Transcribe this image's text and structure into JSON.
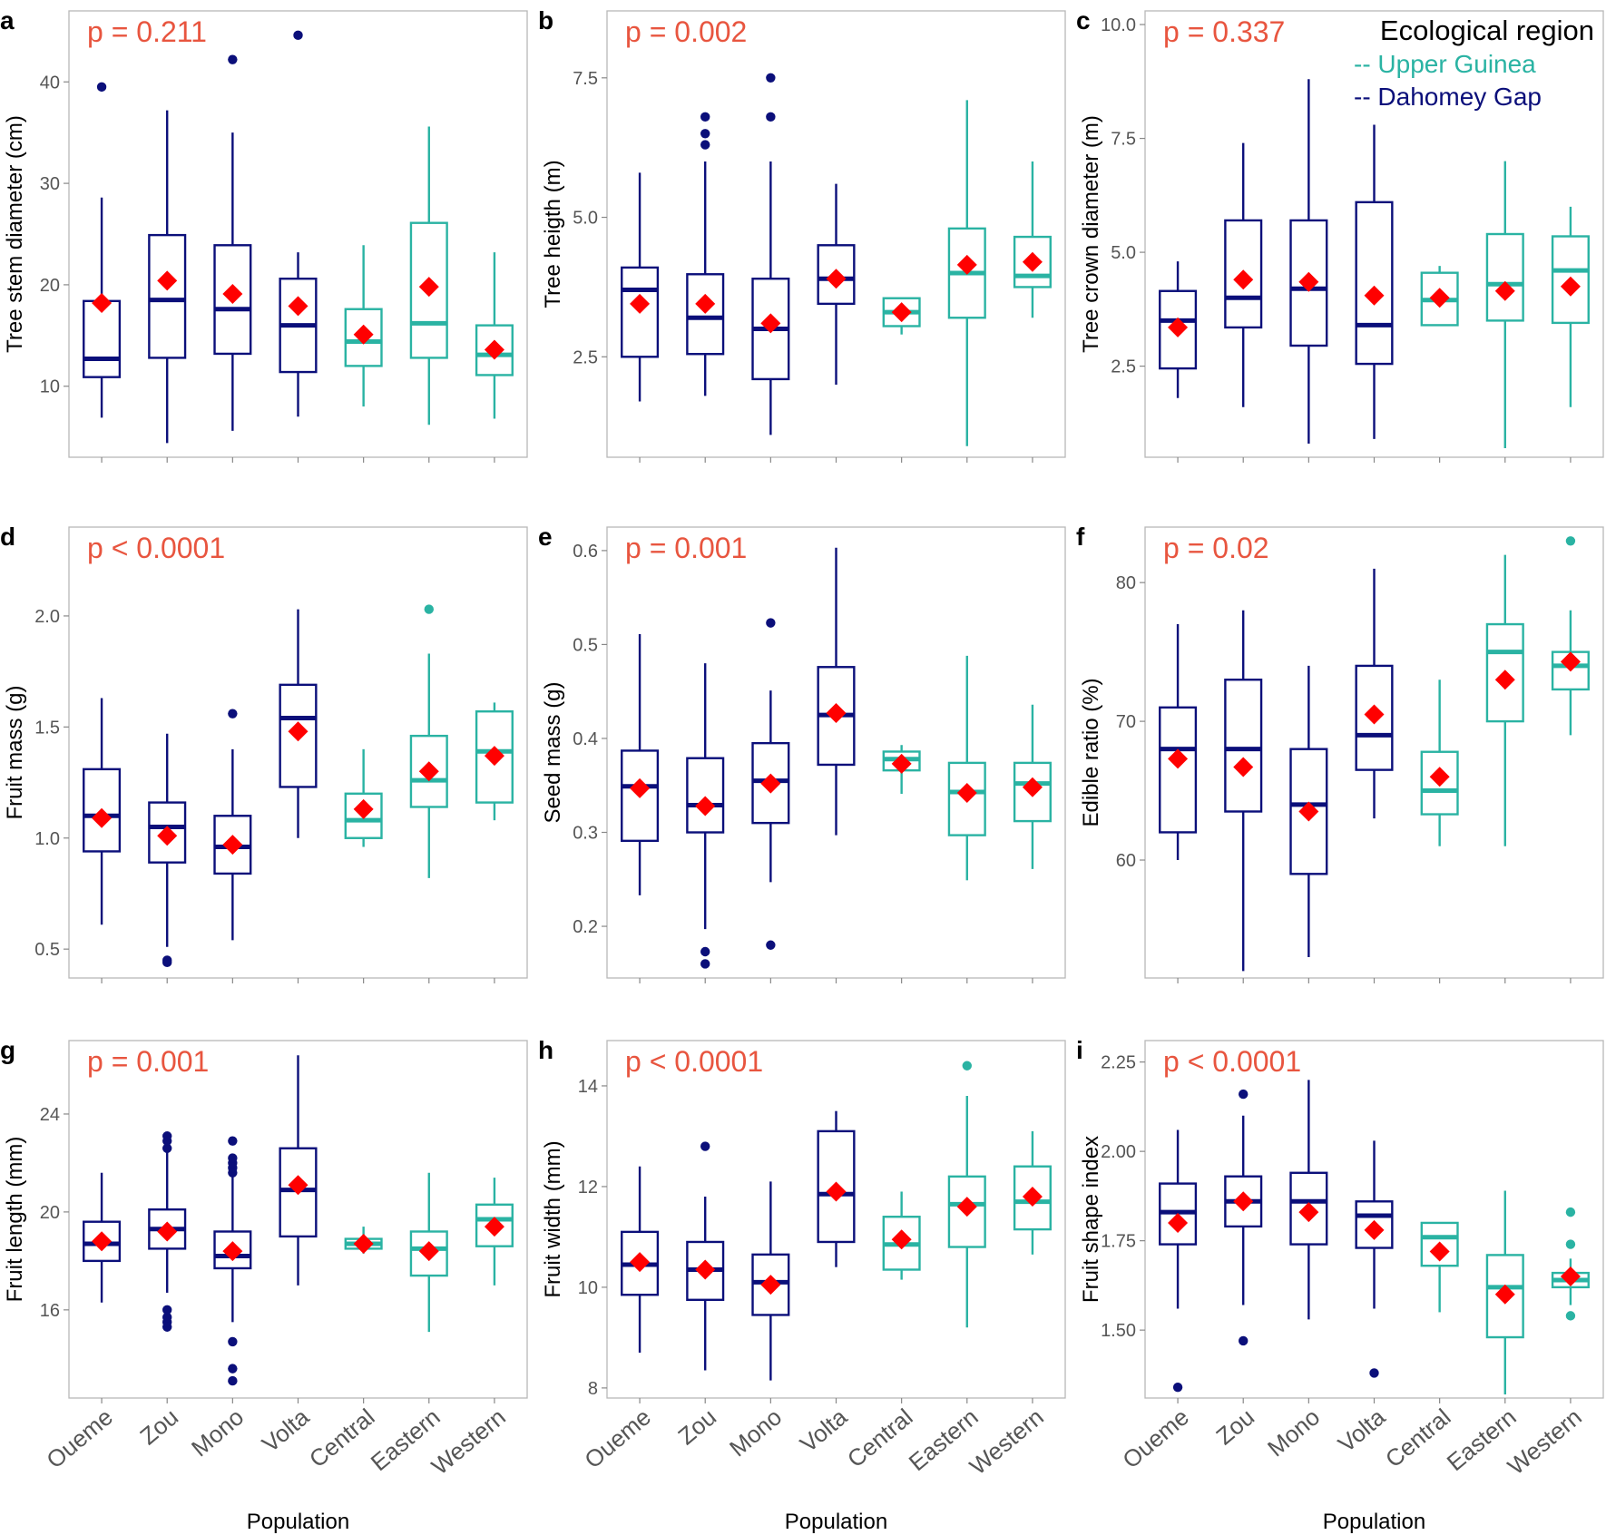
{
  "colors": {
    "dahomey_gap": "#0b0f7a",
    "upper_guinea": "#2ab3a3",
    "mean_marker": "#ff0000",
    "p_value": "#e8553f",
    "panel_border": "#b8b8b8",
    "axis_text": "#555555"
  },
  "x_axis_title": "Population",
  "legend": {
    "title": "Ecological region",
    "items": [
      {
        "label": "-- Upper Guinea",
        "region": "UG"
      },
      {
        "label": "-- Dahomey Gap",
        "region": "DG"
      }
    ]
  },
  "chart_data": [
    {
      "type": "box",
      "panel": "a",
      "ylabel": "Tree stem diameter (cm)",
      "p_label": "p = 0.211",
      "ylim": [
        3,
        47
      ],
      "yticks": [
        10,
        20,
        30,
        40
      ],
      "categories": [
        "Oueme",
        "Zou",
        "Mono",
        "Volta",
        "Central",
        "Eastern",
        "Western"
      ],
      "regions": [
        "DG",
        "DG",
        "DG",
        "DG",
        "UG",
        "UG",
        "UG"
      ],
      "boxes": [
        {
          "min": 6.9,
          "q1": 10.9,
          "median": 12.7,
          "q3": 18.4,
          "max": 28.6,
          "mean": 18.2,
          "outliers": [
            39.5
          ]
        },
        {
          "min": 4.4,
          "q1": 12.8,
          "median": 18.5,
          "q3": 24.9,
          "max": 37.2,
          "mean": 20.4,
          "outliers": []
        },
        {
          "min": 5.6,
          "q1": 13.2,
          "median": 17.6,
          "q3": 23.9,
          "max": 35.0,
          "mean": 19.1,
          "outliers": [
            42.2
          ]
        },
        {
          "min": 7.0,
          "q1": 11.4,
          "median": 16.0,
          "q3": 20.6,
          "max": 23.2,
          "mean": 17.9,
          "outliers": [
            44.6
          ]
        },
        {
          "min": 8.0,
          "q1": 12.0,
          "median": 14.4,
          "q3": 17.6,
          "max": 23.9,
          "mean": 15.1,
          "outliers": []
        },
        {
          "min": 6.2,
          "q1": 12.8,
          "median": 16.2,
          "q3": 26.1,
          "max": 35.6,
          "mean": 19.8,
          "outliers": []
        },
        {
          "min": 6.8,
          "q1": 11.1,
          "median": 13.1,
          "q3": 16.0,
          "max": 23.2,
          "mean": 13.6,
          "outliers": []
        }
      ]
    },
    {
      "type": "box",
      "panel": "b",
      "ylabel": "Tree heigth (m)",
      "p_label": "p = 0.002",
      "ylim": [
        0.7,
        8.7
      ],
      "yticks": [
        "2.5",
        "5.0",
        "7.5"
      ],
      "categories": [
        "Oueme",
        "Zou",
        "Mono",
        "Volta",
        "Central",
        "Eastern",
        "Western"
      ],
      "regions": [
        "DG",
        "DG",
        "DG",
        "DG",
        "UG",
        "UG",
        "UG"
      ],
      "boxes": [
        {
          "min": 1.7,
          "q1": 2.5,
          "median": 3.7,
          "q3": 4.1,
          "max": 5.8,
          "mean": 3.45,
          "outliers": []
        },
        {
          "min": 1.8,
          "q1": 2.55,
          "median": 3.2,
          "q3": 3.98,
          "max": 6.0,
          "mean": 3.45,
          "outliers": [
            6.3,
            6.5,
            6.8
          ]
        },
        {
          "min": 1.1,
          "q1": 2.1,
          "median": 3.0,
          "q3": 3.9,
          "max": 6.0,
          "mean": 3.1,
          "outliers": [
            6.8,
            7.5
          ]
        },
        {
          "min": 2.0,
          "q1": 3.45,
          "median": 3.9,
          "q3": 4.5,
          "max": 5.6,
          "mean": 3.9,
          "outliers": []
        },
        {
          "min": 2.9,
          "q1": 3.05,
          "median": 3.3,
          "q3": 3.55,
          "max": 3.55,
          "mean": 3.3,
          "outliers": []
        },
        {
          "min": 0.9,
          "q1": 3.2,
          "median": 4.0,
          "q3": 4.8,
          "max": 7.1,
          "mean": 4.15,
          "outliers": []
        },
        {
          "min": 3.2,
          "q1": 3.75,
          "median": 3.95,
          "q3": 4.65,
          "max": 6.0,
          "mean": 4.2,
          "outliers": []
        }
      ]
    },
    {
      "type": "box",
      "panel": "c",
      "ylabel": "Tree crown diameter (m)",
      "p_label": "p = 0.337",
      "ylim": [
        0.5,
        10.3
      ],
      "yticks": [
        "2.5",
        "5.0",
        "7.5",
        "10.0"
      ],
      "categories": [
        "Oueme",
        "Zou",
        "Mono",
        "Volta",
        "Central",
        "Eastern",
        "Western"
      ],
      "regions": [
        "DG",
        "DG",
        "DG",
        "DG",
        "UG",
        "UG",
        "UG"
      ],
      "boxes": [
        {
          "min": 1.8,
          "q1": 2.45,
          "median": 3.5,
          "q3": 4.15,
          "max": 4.8,
          "mean": 3.35,
          "outliers": []
        },
        {
          "min": 1.6,
          "q1": 3.35,
          "median": 4.0,
          "q3": 5.7,
          "max": 7.4,
          "mean": 4.4,
          "outliers": []
        },
        {
          "min": 0.8,
          "q1": 2.95,
          "median": 4.2,
          "q3": 5.7,
          "max": 8.8,
          "mean": 4.35,
          "outliers": []
        },
        {
          "min": 0.9,
          "q1": 2.55,
          "median": 3.4,
          "q3": 6.1,
          "max": 7.8,
          "mean": 4.05,
          "outliers": []
        },
        {
          "min": 3.4,
          "q1": 3.4,
          "median": 3.95,
          "q3": 4.55,
          "max": 4.7,
          "mean": 4.0,
          "outliers": []
        },
        {
          "min": 0.7,
          "q1": 3.5,
          "median": 4.3,
          "q3": 5.4,
          "max": 7.0,
          "mean": 4.15,
          "outliers": []
        },
        {
          "min": 1.6,
          "q1": 3.45,
          "median": 4.6,
          "q3": 5.35,
          "max": 6.0,
          "mean": 4.25,
          "outliers": []
        }
      ]
    },
    {
      "type": "box",
      "panel": "d",
      "ylabel": "Fruit mass (g)",
      "p_label": "p < 0.0001",
      "ylim": [
        0.37,
        2.4
      ],
      "yticks": [
        "0.5",
        "1.0",
        "1.5",
        "2.0"
      ],
      "categories": [
        "Oueme",
        "Zou",
        "Mono",
        "Volta",
        "Central",
        "Eastern",
        "Western"
      ],
      "regions": [
        "DG",
        "DG",
        "DG",
        "DG",
        "UG",
        "UG",
        "UG"
      ],
      "boxes": [
        {
          "min": 0.61,
          "q1": 0.94,
          "median": 1.1,
          "q3": 1.31,
          "max": 1.63,
          "mean": 1.09,
          "outliers": []
        },
        {
          "min": 0.51,
          "q1": 0.89,
          "median": 1.05,
          "q3": 1.16,
          "max": 1.47,
          "mean": 1.01,
          "outliers": [
            0.44,
            0.45
          ]
        },
        {
          "min": 0.54,
          "q1": 0.84,
          "median": 0.96,
          "q3": 1.1,
          "max": 1.4,
          "mean": 0.97,
          "outliers": [
            1.56
          ]
        },
        {
          "min": 1.0,
          "q1": 1.23,
          "median": 1.54,
          "q3": 1.69,
          "max": 2.03,
          "mean": 1.48,
          "outliers": []
        },
        {
          "min": 0.96,
          "q1": 1.0,
          "median": 1.08,
          "q3": 1.2,
          "max": 1.4,
          "mean": 1.13,
          "outliers": []
        },
        {
          "min": 0.82,
          "q1": 1.14,
          "median": 1.26,
          "q3": 1.46,
          "max": 1.83,
          "mean": 1.3,
          "outliers": [
            2.03
          ]
        },
        {
          "min": 1.08,
          "q1": 1.16,
          "median": 1.39,
          "q3": 1.57,
          "max": 1.61,
          "mean": 1.37,
          "outliers": []
        }
      ]
    },
    {
      "type": "box",
      "panel": "e",
      "ylabel": "Seed mass (g)",
      "p_label": "p = 0.001",
      "ylim": [
        0.145,
        0.625
      ],
      "yticks": [
        "0.2",
        "0.3",
        "0.4",
        "0.5",
        "0.6"
      ],
      "categories": [
        "Oueme",
        "Zou",
        "Mono",
        "Volta",
        "Central",
        "Eastern",
        "Western"
      ],
      "regions": [
        "DG",
        "DG",
        "DG",
        "DG",
        "UG",
        "UG",
        "UG"
      ],
      "boxes": [
        {
          "min": 0.233,
          "q1": 0.291,
          "median": 0.349,
          "q3": 0.387,
          "max": 0.511,
          "mean": 0.347,
          "outliers": []
        },
        {
          "min": 0.197,
          "q1": 0.3,
          "median": 0.329,
          "q3": 0.379,
          "max": 0.48,
          "mean": 0.328,
          "outliers": [
            0.16,
            0.173
          ]
        },
        {
          "min": 0.247,
          "q1": 0.31,
          "median": 0.355,
          "q3": 0.395,
          "max": 0.451,
          "mean": 0.352,
          "outliers": [
            0.18,
            0.523
          ]
        },
        {
          "min": 0.297,
          "q1": 0.372,
          "median": 0.425,
          "q3": 0.476,
          "max": 0.603,
          "mean": 0.427,
          "outliers": []
        },
        {
          "min": 0.341,
          "q1": 0.366,
          "median": 0.378,
          "q3": 0.386,
          "max": 0.393,
          "mean": 0.373,
          "outliers": []
        },
        {
          "min": 0.249,
          "q1": 0.297,
          "median": 0.343,
          "q3": 0.374,
          "max": 0.488,
          "mean": 0.342,
          "outliers": []
        },
        {
          "min": 0.261,
          "q1": 0.312,
          "median": 0.352,
          "q3": 0.374,
          "max": 0.436,
          "mean": 0.348,
          "outliers": []
        }
      ]
    },
    {
      "type": "box",
      "panel": "f",
      "ylabel": "Edible ratio (%)",
      "p_label": "p = 0.02",
      "ylim": [
        51.5,
        84
      ],
      "yticks": [
        60,
        70,
        80
      ],
      "categories": [
        "Oueme",
        "Zou",
        "Mono",
        "Volta",
        "Central",
        "Eastern",
        "Western"
      ],
      "regions": [
        "DG",
        "DG",
        "DG",
        "DG",
        "UG",
        "UG",
        "UG"
      ],
      "boxes": [
        {
          "min": 60.0,
          "q1": 62.0,
          "median": 68.0,
          "q3": 71.0,
          "max": 77.0,
          "mean": 67.3,
          "outliers": []
        },
        {
          "min": 52.0,
          "q1": 63.5,
          "median": 68.0,
          "q3": 73.0,
          "max": 78.0,
          "mean": 66.7,
          "outliers": []
        },
        {
          "min": 53.0,
          "q1": 59.0,
          "median": 64.0,
          "q3": 68.0,
          "max": 74.0,
          "mean": 63.5,
          "outliers": []
        },
        {
          "min": 63.0,
          "q1": 66.5,
          "median": 69.0,
          "q3": 74.0,
          "max": 81.0,
          "mean": 70.5,
          "outliers": []
        },
        {
          "min": 61.0,
          "q1": 63.3,
          "median": 65.0,
          "q3": 67.8,
          "max": 73.0,
          "mean": 66.0,
          "outliers": []
        },
        {
          "min": 61.0,
          "q1": 70.0,
          "median": 75.0,
          "q3": 77.0,
          "max": 82.0,
          "mean": 73.0,
          "outliers": []
        },
        {
          "min": 69.0,
          "q1": 72.3,
          "median": 74.0,
          "q3": 75.0,
          "max": 78.0,
          "mean": 74.3,
          "outliers": [
            83.0
          ]
        }
      ]
    },
    {
      "type": "box",
      "panel": "g",
      "ylabel": "Fruit length (mm)",
      "p_label": "p = 0.001",
      "ylim": [
        12.4,
        27.0
      ],
      "yticks": [
        16,
        20,
        24
      ],
      "categories": [
        "Oueme",
        "Zou",
        "Mono",
        "Volta",
        "Central",
        "Eastern",
        "Western"
      ],
      "regions": [
        "DG",
        "DG",
        "DG",
        "DG",
        "UG",
        "UG",
        "UG"
      ],
      "boxes": [
        {
          "min": 16.3,
          "q1": 18.0,
          "median": 18.7,
          "q3": 19.6,
          "max": 21.6,
          "mean": 18.8,
          "outliers": []
        },
        {
          "min": 16.7,
          "q1": 18.5,
          "median": 19.3,
          "q3": 20.1,
          "max": 22.5,
          "mean": 19.2,
          "outliers": [
            15.3,
            15.5,
            15.7,
            16.0,
            22.6,
            22.9,
            23.1
          ]
        },
        {
          "min": 15.5,
          "q1": 17.7,
          "median": 18.2,
          "q3": 19.2,
          "max": 21.5,
          "mean": 18.4,
          "outliers": [
            13.1,
            13.6,
            14.7,
            21.6,
            21.8,
            22.0,
            22.2,
            22.9
          ]
        },
        {
          "min": 17.0,
          "q1": 19.0,
          "median": 20.9,
          "q3": 22.6,
          "max": 26.4,
          "mean": 21.1,
          "outliers": []
        },
        {
          "min": 18.3,
          "q1": 18.5,
          "median": 18.7,
          "q3": 18.9,
          "max": 19.4,
          "mean": 18.7,
          "outliers": []
        },
        {
          "min": 15.1,
          "q1": 17.4,
          "median": 18.5,
          "q3": 19.2,
          "max": 21.6,
          "mean": 18.4,
          "outliers": []
        },
        {
          "min": 17.0,
          "q1": 18.6,
          "median": 19.7,
          "q3": 20.3,
          "max": 21.4,
          "mean": 19.4,
          "outliers": []
        }
      ]
    },
    {
      "type": "box",
      "panel": "h",
      "ylabel": "Fruit width (mm)",
      "p_label": "p < 0.0001",
      "ylim": [
        7.8,
        14.9
      ],
      "yticks": [
        8,
        10,
        12,
        14
      ],
      "categories": [
        "Oueme",
        "Zou",
        "Mono",
        "Volta",
        "Central",
        "Eastern",
        "Western"
      ],
      "regions": [
        "DG",
        "DG",
        "DG",
        "DG",
        "UG",
        "UG",
        "UG"
      ],
      "boxes": [
        {
          "min": 8.7,
          "q1": 9.85,
          "median": 10.45,
          "q3": 11.1,
          "max": 12.4,
          "mean": 10.5,
          "outliers": []
        },
        {
          "min": 8.35,
          "q1": 9.75,
          "median": 10.35,
          "q3": 10.9,
          "max": 11.8,
          "mean": 10.35,
          "outliers": [
            12.8
          ]
        },
        {
          "min": 8.15,
          "q1": 9.45,
          "median": 10.1,
          "q3": 10.65,
          "max": 12.1,
          "mean": 10.05,
          "outliers": []
        },
        {
          "min": 10.4,
          "q1": 10.9,
          "median": 11.85,
          "q3": 13.1,
          "max": 13.5,
          "mean": 11.9,
          "outliers": []
        },
        {
          "min": 10.15,
          "q1": 10.35,
          "median": 10.85,
          "q3": 11.4,
          "max": 11.9,
          "mean": 10.95,
          "outliers": []
        },
        {
          "min": 9.2,
          "q1": 10.8,
          "median": 11.65,
          "q3": 12.2,
          "max": 13.8,
          "mean": 11.6,
          "outliers": [
            14.4
          ]
        },
        {
          "min": 10.65,
          "q1": 11.15,
          "median": 11.7,
          "q3": 12.4,
          "max": 13.1,
          "mean": 11.8,
          "outliers": []
        }
      ]
    },
    {
      "type": "box",
      "panel": "i",
      "ylabel": "Fruit shape index",
      "p_label": "p < 0.0001",
      "ylim": [
        1.31,
        2.31
      ],
      "yticks": [
        "1.50",
        "1.75",
        "2.00",
        "2.25"
      ],
      "categories": [
        "Oueme",
        "Zou",
        "Mono",
        "Volta",
        "Central",
        "Eastern",
        "Western"
      ],
      "regions": [
        "DG",
        "DG",
        "DG",
        "DG",
        "UG",
        "UG",
        "UG"
      ],
      "boxes": [
        {
          "min": 1.56,
          "q1": 1.74,
          "median": 1.83,
          "q3": 1.91,
          "max": 2.06,
          "mean": 1.8,
          "outliers": [
            1.34
          ]
        },
        {
          "min": 1.57,
          "q1": 1.79,
          "median": 1.86,
          "q3": 1.93,
          "max": 2.1,
          "mean": 1.86,
          "outliers": [
            1.47,
            2.16
          ]
        },
        {
          "min": 1.53,
          "q1": 1.74,
          "median": 1.86,
          "q3": 1.94,
          "max": 2.2,
          "mean": 1.83,
          "outliers": []
        },
        {
          "min": 1.56,
          "q1": 1.73,
          "median": 1.82,
          "q3": 1.86,
          "max": 2.03,
          "mean": 1.78,
          "outliers": [
            1.38
          ]
        },
        {
          "min": 1.55,
          "q1": 1.68,
          "median": 1.76,
          "q3": 1.8,
          "max": 1.8,
          "mean": 1.72,
          "outliers": []
        },
        {
          "min": 1.32,
          "q1": 1.48,
          "median": 1.62,
          "q3": 1.71,
          "max": 1.89,
          "mean": 1.6,
          "outliers": []
        },
        {
          "min": 1.57,
          "q1": 1.62,
          "median": 1.64,
          "q3": 1.66,
          "max": 1.7,
          "mean": 1.65,
          "outliers": [
            1.54,
            1.74,
            1.83
          ]
        }
      ]
    }
  ]
}
